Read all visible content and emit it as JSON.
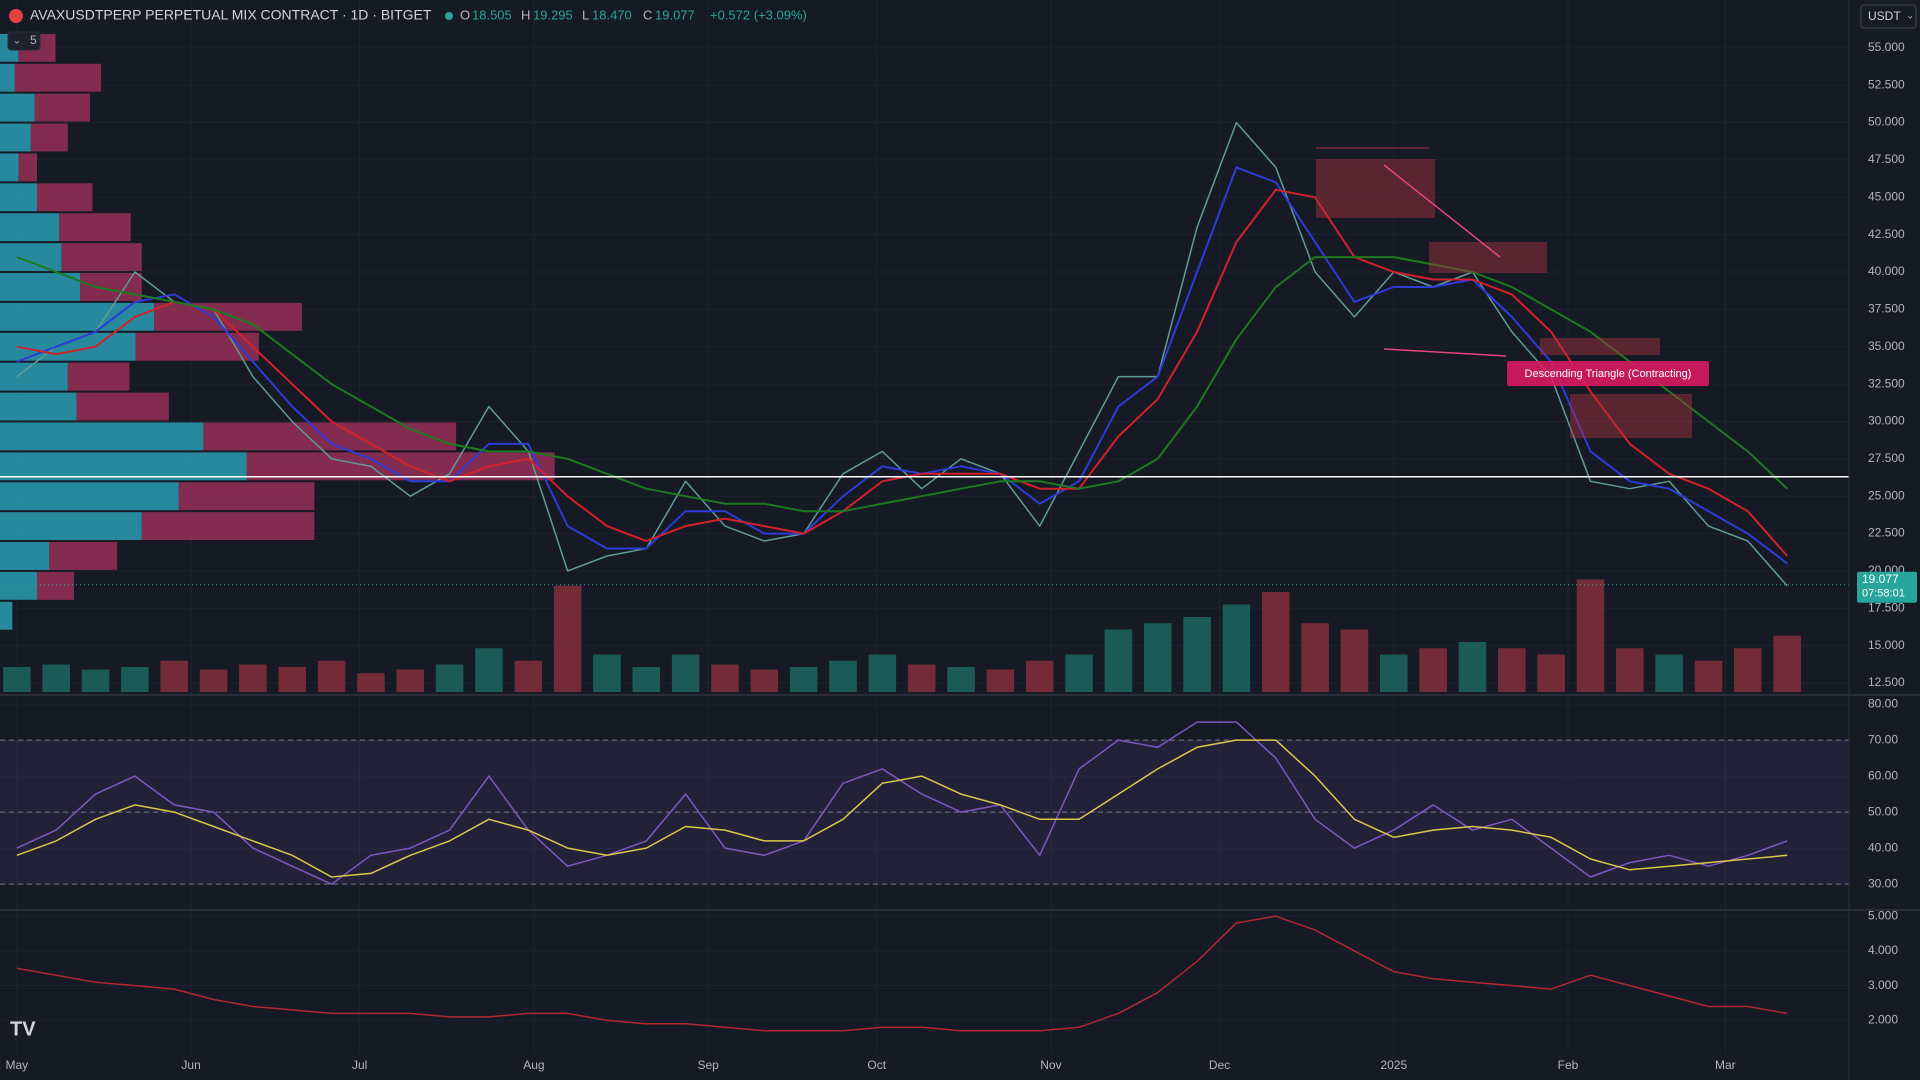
{
  "header": {
    "title": "AVAXUSDTPERP PERPETUAL MIX CONTRACT · 1D · BITGET",
    "ohlc": [
      {
        "name": "O",
        "value": 18.505
      },
      {
        "name": "H",
        "value": 19.295
      },
      {
        "name": "L",
        "value": 18.47,
        "label": "18.470"
      },
      {
        "name": "C",
        "value": 19.077
      }
    ],
    "change": "+0.572 (+3.09%)",
    "indicators": 5,
    "currency": "USDT"
  },
  "chart_data": {
    "type": "line",
    "x": [
      "2024-05-01",
      "2024-05-08",
      "2024-05-15",
      "2024-05-22",
      "2024-05-29",
      "2024-06-05",
      "2024-06-12",
      "2024-06-19",
      "2024-06-26",
      "2024-07-03",
      "2024-07-10",
      "2024-07-17",
      "2024-07-24",
      "2024-07-31",
      "2024-08-07",
      "2024-08-14",
      "2024-08-21",
      "2024-08-28",
      "2024-09-04",
      "2024-09-11",
      "2024-09-18",
      "2024-09-25",
      "2024-10-02",
      "2024-10-09",
      "2024-10-16",
      "2024-10-23",
      "2024-10-30",
      "2024-11-06",
      "2024-11-13",
      "2024-11-20",
      "2024-11-27",
      "2024-12-04",
      "2024-12-11",
      "2024-12-18",
      "2024-12-25",
      "2025-01-01",
      "2025-01-08",
      "2025-01-15",
      "2025-01-22",
      "2025-01-29",
      "2025-02-05",
      "2025-02-12",
      "2025-02-19",
      "2025-02-26",
      "2025-03-05",
      "2025-03-12"
    ],
    "xlim": [
      "2024-04-28",
      "2025-03-23"
    ],
    "xticks": [
      {
        "value": "2024-05-01",
        "label": "May"
      },
      {
        "value": "2024-06-01",
        "label": "Jun"
      },
      {
        "value": "2024-07-01",
        "label": "Jul"
      },
      {
        "value": "2024-08-01",
        "label": "Aug"
      },
      {
        "value": "2024-09-01",
        "label": "Sep"
      },
      {
        "value": "2024-10-01",
        "label": "Oct"
      },
      {
        "value": "2024-11-01",
        "label": "Nov"
      },
      {
        "value": "2024-12-01",
        "label": "Dec"
      },
      {
        "value": "2025-01-01",
        "label": "2025"
      },
      {
        "value": "2025-02-01",
        "label": "Feb"
      },
      {
        "value": "2025-03-01",
        "label": "Mar"
      }
    ],
    "ylim": [
      11.9,
      58.2
    ],
    "yticks": [
      {
        "value": 12.5,
        "label": "12.500"
      },
      {
        "value": 15,
        "label": "15.000"
      },
      {
        "value": 17.5,
        "label": "17.500"
      },
      {
        "value": 20,
        "label": "20.000"
      },
      {
        "value": 22.5,
        "label": "22.500"
      },
      {
        "value": 25,
        "label": "25.000"
      },
      {
        "value": 27.5,
        "label": "27.500"
      },
      {
        "value": 30,
        "label": "30.000"
      },
      {
        "value": 32.5,
        "label": "32.500"
      },
      {
        "value": 35,
        "label": "35.000"
      },
      {
        "value": 37.5,
        "label": "37.500"
      },
      {
        "value": 40,
        "label": "40.000"
      },
      {
        "value": 42.5,
        "label": "42.500"
      },
      {
        "value": 45,
        "label": "45.000"
      },
      {
        "value": 47.5,
        "label": "47.500"
      },
      {
        "value": 50,
        "label": "50.000"
      },
      {
        "value": 52.5,
        "label": "52.500"
      },
      {
        "value": 55,
        "label": "55.000"
      }
    ],
    "grid": true,
    "series": [
      {
        "color": "#5d9c97",
        "values": [
          33,
          35,
          36,
          40,
          38,
          37.5,
          33,
          30,
          27.5,
          27,
          25,
          26.5,
          31,
          28,
          20,
          21,
          21.5,
          26,
          23,
          22,
          22.5,
          26.5,
          28,
          25.5,
          27.5,
          26.5,
          23,
          28,
          33,
          33,
          43,
          50,
          47,
          40,
          37,
          40,
          39,
          40,
          36,
          33,
          26,
          25.5,
          26,
          23,
          22,
          19
        ]
      },
      {
        "color": "#2e3bd6",
        "values": [
          34,
          35,
          36,
          38,
          38.5,
          37,
          34,
          31,
          28.5,
          27.5,
          26,
          26,
          28.5,
          28.5,
          23,
          21.5,
          21.5,
          24,
          24,
          22.5,
          22.5,
          25,
          27,
          26.5,
          27,
          26.5,
          24.5,
          26,
          31,
          33,
          40,
          47,
          46,
          42,
          38,
          39,
          39,
          39.5,
          37,
          34,
          28,
          26,
          25.5,
          24,
          22.5,
          20.5
        ]
      },
      {
        "color": "#d3202b",
        "values": [
          35,
          34.5,
          35,
          37,
          38,
          37.5,
          35,
          32.5,
          30,
          28.5,
          27,
          26,
          27,
          27.5,
          25,
          23,
          22,
          23,
          23.5,
          23,
          22.5,
          24,
          26,
          26.5,
          26.5,
          26.5,
          25.5,
          25.5,
          29,
          31.5,
          36,
          42,
          45.5,
          45,
          41,
          40,
          39.5,
          39.5,
          38.5,
          36,
          32,
          28.5,
          26.5,
          25.5,
          24,
          21
        ]
      },
      {
        "color": "#1c7a1f",
        "values": [
          41,
          40,
          39,
          38.5,
          38,
          37.5,
          36.5,
          34.5,
          32.5,
          31,
          29.5,
          28.5,
          28,
          28,
          27.5,
          26.5,
          25.5,
          25,
          24.5,
          24.5,
          24,
          24,
          24.5,
          25,
          25.5,
          26,
          26,
          25.5,
          26,
          27.5,
          31,
          35.5,
          39,
          41,
          41,
          41,
          40.5,
          40,
          39,
          37.5,
          36,
          34,
          32,
          30,
          28,
          25.5
        ]
      }
    ],
    "hline": 26.3,
    "last_price": 19.077,
    "countdown": "07:58:01",
    "annotation": "Descending Triangle (Contracting)",
    "volume": {
      "ylim": [
        0,
        100
      ],
      "up_color": "#1d6660",
      "down_color": "#84303b",
      "values": [
        20,
        22,
        18,
        20,
        25,
        18,
        22,
        20,
        25,
        15,
        18,
        22,
        35,
        25,
        85,
        30,
        20,
        30,
        22,
        18,
        20,
        25,
        30,
        22,
        20,
        18,
        25,
        30,
        50,
        55,
        60,
        70,
        80,
        55,
        50,
        30,
        35,
        40,
        35,
        30,
        90,
        35,
        30,
        25,
        35,
        45
      ]
    },
    "volume_profile": {
      "xlim": [
        0,
        1500
      ],
      "up_color": "#2aa5bb",
      "down_color": "#a8335f",
      "bins": [
        16,
        18,
        20,
        22,
        24,
        26,
        28,
        30,
        32,
        34,
        36,
        38,
        40,
        42,
        44,
        46,
        48,
        50,
        52,
        54,
        56
      ],
      "up": [
        10,
        30,
        40,
        115,
        145,
        200,
        165,
        62,
        55,
        110,
        125,
        65,
        50,
        48,
        30,
        15,
        25,
        28,
        12,
        15
      ],
      "down": [
        0,
        30,
        55,
        140,
        110,
        250,
        205,
        75,
        50,
        100,
        120,
        50,
        65,
        58,
        45,
        15,
        30,
        45,
        70,
        30
      ]
    },
    "panes": [
      {
        "ylim": [
          23.1,
          81.7
        ],
        "yticks": [
          {
            "value": 30,
            "label": "30.00"
          },
          {
            "value": 40,
            "label": "40.00"
          },
          {
            "value": 50,
            "label": "50.00"
          },
          {
            "value": 60,
            "label": "60.00"
          },
          {
            "value": 70,
            "label": "70.00"
          },
          {
            "value": 80,
            "label": "80.00"
          }
        ],
        "levels": [
          30,
          50,
          70
        ],
        "series": [
          {
            "color": "#7e57c2",
            "values": [
              40,
              45,
              55,
              60,
              52,
              50,
              40,
              35,
              30,
              38,
              40,
              45,
              60,
              45,
              35,
              38,
              42,
              55,
              40,
              38,
              42,
              58,
              62,
              55,
              50,
              52,
              38,
              62,
              70,
              68,
              75,
              75,
              65,
              48,
              40,
              45,
              52,
              45,
              48,
              40,
              32,
              36,
              38,
              35,
              38,
              42
            ]
          },
          {
            "color": "#d8c94a",
            "values": [
              38,
              42,
              48,
              52,
              50,
              46,
              42,
              38,
              32,
              33,
              38,
              42,
              48,
              45,
              40,
              38,
              40,
              46,
              45,
              42,
              42,
              48,
              58,
              60,
              55,
              52,
              48,
              48,
              55,
              62,
              68,
              70,
              70,
              60,
              48,
              43,
              45,
              46,
              45,
              43,
              37,
              34,
              35,
              36,
              37,
              38
            ]
          }
        ]
      },
      {
        "ylim": [
          1.06,
          5.12
        ],
        "yticks": [
          {
            "value": 2,
            "label": "2.000"
          },
          {
            "value": 3,
            "label": "3.000"
          },
          {
            "value": 4,
            "label": "4.000"
          },
          {
            "value": 5,
            "label": "5.000"
          }
        ],
        "series": [
          {
            "color": "#b22833",
            "values": [
              3.5,
              3.3,
              3.1,
              3.0,
              2.9,
              2.6,
              2.4,
              2.3,
              2.2,
              2.2,
              2.2,
              2.1,
              2.1,
              2.2,
              2.2,
              2.0,
              1.9,
              1.9,
              1.8,
              1.7,
              1.7,
              1.7,
              1.8,
              1.8,
              1.7,
              1.7,
              1.7,
              1.8,
              2.2,
              2.8,
              3.7,
              4.8,
              5.0,
              4.6,
              4.0,
              3.4,
              3.2,
              3.1,
              3.0,
              2.9,
              3.3,
              3.0,
              2.7,
              2.4,
              2.4,
              2.2
            ]
          }
        ]
      }
    ]
  }
}
